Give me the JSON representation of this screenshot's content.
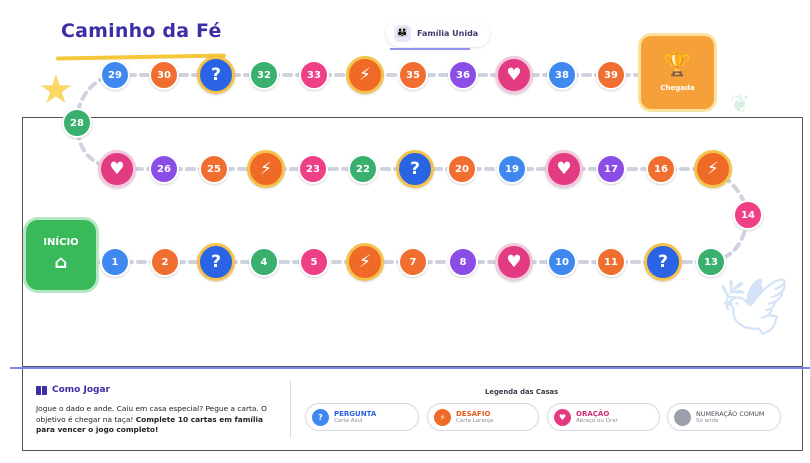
{
  "title": "Caminho da Fé",
  "family_tag": "Família Unida",
  "start": {
    "label": "INÍCIO",
    "icon": "home-icon"
  },
  "finish": {
    "label": "Chegada",
    "icon": "trophy-icon"
  },
  "spaces": [
    {
      "id": "1",
      "type": "number",
      "color": "#3f88f0"
    },
    {
      "id": "2",
      "type": "number",
      "color": "#f06f30"
    },
    {
      "id": "q1",
      "type": "pergunta",
      "label": "?"
    },
    {
      "id": "4",
      "type": "number",
      "color": "#39b06e"
    },
    {
      "id": "5",
      "type": "number",
      "color": "#ef3f86"
    },
    {
      "id": "b1",
      "type": "desafio",
      "label": "⚡"
    },
    {
      "id": "7",
      "type": "number",
      "color": "#f06f30"
    },
    {
      "id": "8",
      "type": "number",
      "color": "#8a4de6"
    },
    {
      "id": "h1",
      "type": "oracao",
      "label": "♥"
    },
    {
      "id": "10",
      "type": "number",
      "color": "#3f88f0"
    },
    {
      "id": "11",
      "type": "number",
      "color": "#f06f30"
    },
    {
      "id": "q2",
      "type": "pergunta",
      "label": "?"
    },
    {
      "id": "13",
      "type": "number",
      "color": "#39b06e"
    },
    {
      "id": "14",
      "type": "number",
      "color": "#ef3f86"
    },
    {
      "id": "b2",
      "type": "desafio",
      "label": "⚡"
    },
    {
      "id": "16",
      "type": "number",
      "color": "#f06f30"
    },
    {
      "id": "17",
      "type": "number",
      "color": "#8a4de6"
    },
    {
      "id": "h2",
      "type": "oracao",
      "label": "♥"
    },
    {
      "id": "19",
      "type": "number",
      "color": "#3f88f0"
    },
    {
      "id": "20",
      "type": "number",
      "color": "#f06f30"
    },
    {
      "id": "q3",
      "type": "pergunta",
      "label": "?"
    },
    {
      "id": "22",
      "type": "number",
      "color": "#39b06e"
    },
    {
      "id": "23",
      "type": "number",
      "color": "#ef3f86"
    },
    {
      "id": "b3",
      "type": "desafio",
      "label": "⚡"
    },
    {
      "id": "25",
      "type": "number",
      "color": "#f06f30"
    },
    {
      "id": "26",
      "type": "number",
      "color": "#8a4de6"
    },
    {
      "id": "h3",
      "type": "oracao",
      "label": "♥"
    },
    {
      "id": "28",
      "type": "number",
      "color": "#39b06e"
    },
    {
      "id": "29",
      "type": "number",
      "color": "#3f88f0"
    },
    {
      "id": "30",
      "type": "number",
      "color": "#f06f30"
    },
    {
      "id": "q4",
      "type": "pergunta",
      "label": "?"
    },
    {
      "id": "32",
      "type": "number",
      "color": "#39b06e"
    },
    {
      "id": "33",
      "type": "number",
      "color": "#ef3f86"
    },
    {
      "id": "b4",
      "type": "desafio",
      "label": "⚡"
    },
    {
      "id": "35",
      "type": "number",
      "color": "#f06f30"
    },
    {
      "id": "36",
      "type": "number",
      "color": "#8a4de6"
    },
    {
      "id": "h4",
      "type": "oracao",
      "label": "♥"
    },
    {
      "id": "38",
      "type": "number",
      "color": "#3f88f0"
    },
    {
      "id": "39",
      "type": "number",
      "color": "#f06f30"
    }
  ],
  "how_to_play": {
    "title": "Como Jogar",
    "text_plain": "Jogue o dado e ande. Caiu em casa especial? Pegue a carta. O objetivo é chegar na taça! ",
    "text_bold": "Complete 10 cartas em família para vencer o jogo completo!"
  },
  "legend": {
    "title": "Legenda das Casas",
    "items": [
      {
        "name": "PERGUNTA",
        "desc": "Carta Azul",
        "icon": "?",
        "color": "#2a63e3"
      },
      {
        "name": "DESAFIO",
        "desc": "Carta Laranja",
        "icon": "⚡",
        "color": "#f06a27"
      },
      {
        "name": "ORAÇÃO",
        "desc": "Abraço ou Orar",
        "icon": "♥",
        "color": "#e23b82"
      },
      {
        "name": "NUMERAÇÃO COMUM",
        "desc": "Só ande",
        "icon": "",
        "color": "#9aa0ab"
      }
    ]
  }
}
